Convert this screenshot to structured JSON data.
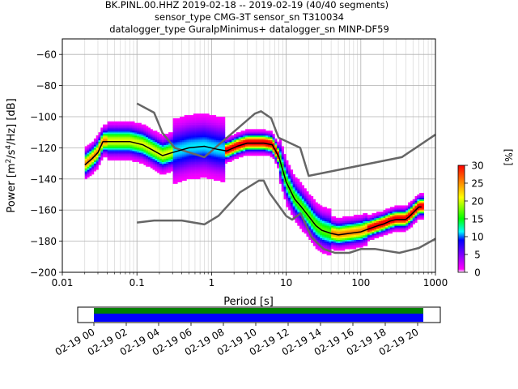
{
  "chart_data": [
    {
      "type": "heatmap",
      "title": [
        "BK.PINL.00.HHZ   2019-02-18 -- 2019-02-19  (40/40 segments)",
        "sensor_type CMG-3T sensor_sn T310034",
        "datalogger_type GuralpMinimus+ datalogger_sn MINP-DF59"
      ],
      "xlabel": "Period [s]",
      "ylabel": "Power [m²/s⁴/Hz] [dB]",
      "xscale": "log",
      "xlim": [
        0.01,
        1000
      ],
      "ylim": [
        -200,
        -50
      ],
      "x_ticks": [
        0.01,
        0.1,
        1,
        10,
        100,
        1000
      ],
      "x_tick_labels": [
        "0.01",
        "0.1",
        "1",
        "10",
        "100",
        "1000"
      ],
      "y_ticks": [
        -200,
        -180,
        -160,
        -140,
        -120,
        -100,
        -80,
        -60
      ],
      "y_tick_labels": [
        "−200",
        "−180",
        "−160",
        "−140",
        "−120",
        "−100",
        "−80",
        "−60"
      ],
      "grid": true,
      "colorbar": {
        "label": "[%]",
        "range": [
          0,
          30
        ],
        "ticks": [
          0,
          5,
          10,
          15,
          20,
          25,
          30
        ],
        "tick_labels": [
          "0",
          "5",
          "10",
          "15",
          "20",
          "25",
          "30"
        ],
        "colormap": "pqlx"
      },
      "series": [
        {
          "name": "",
          "kind": "mode",
          "color": "#000000",
          "x": [
            0.02,
            0.025,
            0.03,
            0.035,
            0.05,
            0.08,
            0.12,
            0.17,
            0.22,
            0.3,
            0.5,
            0.8,
            1.2,
            1.6,
            2.2,
            3,
            4,
            5,
            6.5,
            8,
            10,
            13,
            16,
            20,
            25,
            30,
            40,
            50,
            70,
            100,
            130,
            170,
            200,
            250,
            300,
            400,
            450,
            600,
            650
          ],
          "y": [
            -131,
            -127,
            -123,
            -116,
            -116,
            -116,
            -118,
            -122,
            -125,
            -123,
            -120,
            -119,
            -121,
            -122,
            -119,
            -117,
            -117,
            -117,
            -118,
            -126,
            -142,
            -153,
            -158,
            -164,
            -170,
            -173,
            -175,
            -176,
            -175,
            -174,
            -172,
            -170,
            -169,
            -167,
            -166,
            -166,
            -164,
            -158,
            -158
          ]
        },
        {
          "name": "",
          "kind": "noise model",
          "color": "#666666",
          "x": [
            0.1,
            0.17,
            0.22,
            0.32,
            0.8,
            3.8,
            4.6,
            6.3,
            7.9,
            15.4,
            20,
            354.8,
            1000
          ],
          "y": [
            -91.5,
            -97.4,
            -110.5,
            -120,
            -126,
            -98,
            -96.5,
            -101,
            -113.5,
            -120,
            -138,
            -126,
            -111.5
          ]
        },
        {
          "name": "",
          "kind": "noise model",
          "color": "#666666",
          "x": [
            0.1,
            0.17,
            0.4,
            0.8,
            1.24,
            2.4,
            4.3,
            5,
            6,
            10,
            12,
            15.6,
            21.9,
            31.6,
            45,
            70,
            101,
            154,
            328,
            600,
            10000
          ],
          "y": [
            -168,
            -166.7,
            -166.7,
            -169.2,
            -163.7,
            -148.6,
            -141.1,
            -141.1,
            -149,
            -163.8,
            -166.2,
            -162.1,
            -177.5,
            -185,
            -187.5,
            -187.5,
            -185,
            -185,
            -187.5,
            -184.4,
            -151.5
          ]
        }
      ]
    },
    {
      "type": "bar",
      "title": "",
      "xlabel": "",
      "ylabel": "",
      "x_tick_labels": [
        "02-19 00",
        "02-19 02",
        "02-19 04",
        "02-19 06",
        "02-19 08",
        "02-19 10",
        "02-19 12",
        "02-19 14",
        "02-19 16",
        "02-19 18",
        "02-19 20"
      ],
      "series": [
        {
          "name": "",
          "color": "#008000",
          "start": "02-19 00",
          "end": "02-19 20:40"
        },
        {
          "name": "",
          "color": "#0000ff",
          "start": "02-19 00",
          "end": "02-19 20:40"
        }
      ]
    }
  ]
}
